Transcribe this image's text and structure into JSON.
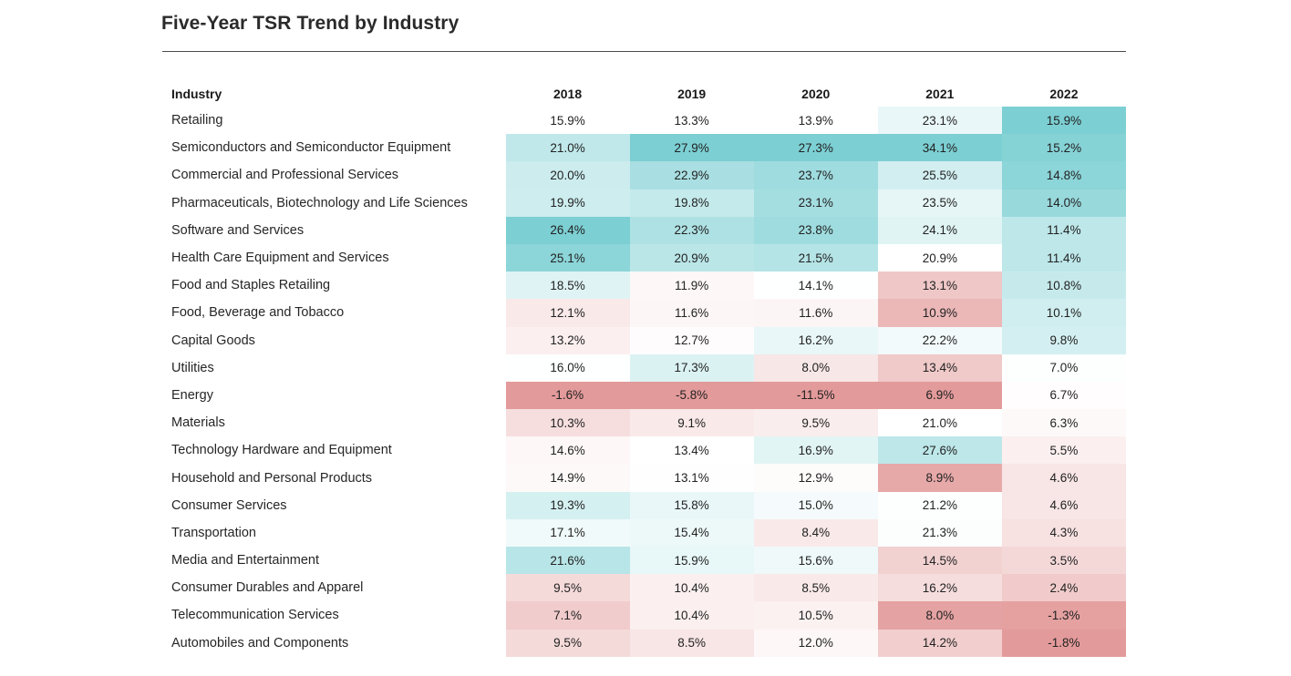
{
  "title": "Five-Year TSR Trend by Industry",
  "chart_data": {
    "type": "heatmap",
    "title": "Five-Year TSR Trend by Industry",
    "row_header": "Industry",
    "columns": [
      "2018",
      "2019",
      "2020",
      "2021",
      "2022"
    ],
    "colors": {
      "high": "#7ccfd3",
      "mid": "#ffffff",
      "low": "#e39a9a"
    },
    "rows": [
      {
        "industry": "Retailing",
        "values": [
          15.9,
          13.3,
          13.9,
          23.1,
          15.9
        ],
        "labels": [
          "15.9%",
          "13.3%",
          "13.9%",
          "23.1%",
          "15.9%"
        ]
      },
      {
        "industry": "Semiconductors and Semiconductor Equipment",
        "values": [
          21.0,
          27.9,
          27.3,
          34.1,
          15.2
        ],
        "labels": [
          "21.0%",
          "27.9%",
          "27.3%",
          "34.1%",
          "15.2%"
        ]
      },
      {
        "industry": "Commercial and Professional Services",
        "values": [
          20.0,
          22.9,
          23.7,
          25.5,
          14.8
        ],
        "labels": [
          "20.0%",
          "22.9%",
          "23.7%",
          "25.5%",
          "14.8%"
        ]
      },
      {
        "industry": "Pharmaceuticals, Biotechnology and Life Sciences",
        "values": [
          19.9,
          19.8,
          23.1,
          23.5,
          14.0
        ],
        "labels": [
          "19.9%",
          "19.8%",
          "23.1%",
          "23.5%",
          "14.0%"
        ]
      },
      {
        "industry": "Software and Services",
        "values": [
          26.4,
          22.3,
          23.8,
          24.1,
          11.4
        ],
        "labels": [
          "26.4%",
          "22.3%",
          "23.8%",
          "24.1%",
          "11.4%"
        ]
      },
      {
        "industry": "Health Care Equipment and Services",
        "values": [
          25.1,
          20.9,
          21.5,
          20.9,
          11.4
        ],
        "labels": [
          "25.1%",
          "20.9%",
          "21.5%",
          "20.9%",
          "11.4%"
        ]
      },
      {
        "industry": "Food and Staples Retailing",
        "values": [
          18.5,
          11.9,
          14.1,
          13.1,
          10.8
        ],
        "labels": [
          "18.5%",
          "11.9%",
          "14.1%",
          "13.1%",
          "10.8%"
        ]
      },
      {
        "industry": "Food, Beverage and Tobacco",
        "values": [
          12.1,
          11.6,
          11.6,
          10.9,
          10.1
        ],
        "labels": [
          "12.1%",
          "11.6%",
          "11.6%",
          "10.9%",
          "10.1%"
        ]
      },
      {
        "industry": "Capital Goods",
        "values": [
          13.2,
          12.7,
          16.2,
          22.2,
          9.8
        ],
        "labels": [
          "13.2%",
          "12.7%",
          "16.2%",
          "22.2%",
          "9.8%"
        ]
      },
      {
        "industry": "Utilities",
        "values": [
          16.0,
          17.3,
          8.0,
          13.4,
          7.0
        ],
        "labels": [
          "16.0%",
          "17.3%",
          "8.0%",
          "13.4%",
          "7.0%"
        ]
      },
      {
        "industry": "Energy",
        "values": [
          -1.6,
          -5.8,
          -11.5,
          6.9,
          6.7
        ],
        "labels": [
          "-1.6%",
          "-5.8%",
          "-11.5%",
          "6.9%",
          "6.7%"
        ]
      },
      {
        "industry": "Materials",
        "values": [
          10.3,
          9.1,
          9.5,
          21.0,
          6.3
        ],
        "labels": [
          "10.3%",
          "9.1%",
          "9.5%",
          "21.0%",
          "6.3%"
        ]
      },
      {
        "industry": "Technology Hardware and Equipment",
        "values": [
          14.6,
          13.4,
          16.9,
          27.6,
          5.5
        ],
        "labels": [
          "14.6%",
          "13.4%",
          "16.9%",
          "27.6%",
          "5.5%"
        ]
      },
      {
        "industry": "Household and Personal Products",
        "values": [
          14.9,
          13.1,
          12.9,
          8.9,
          4.6
        ],
        "labels": [
          "14.9%",
          "13.1%",
          "12.9%",
          "8.9%",
          "4.6%"
        ]
      },
      {
        "industry": "Consumer Services",
        "values": [
          19.3,
          15.8,
          15.0,
          21.2,
          4.6
        ],
        "labels": [
          "19.3%",
          "15.8%",
          "15.0%",
          "21.2%",
          "4.6%"
        ]
      },
      {
        "industry": "Transportation",
        "values": [
          17.1,
          15.4,
          8.4,
          21.3,
          4.3
        ],
        "labels": [
          "17.1%",
          "15.4%",
          "8.4%",
          "21.3%",
          "4.3%"
        ]
      },
      {
        "industry": "Media and Entertainment",
        "values": [
          21.6,
          15.9,
          15.6,
          14.5,
          3.5
        ],
        "labels": [
          "21.6%",
          "15.9%",
          "15.6%",
          "14.5%",
          "3.5%"
        ]
      },
      {
        "industry": "Consumer Durables and Apparel",
        "values": [
          9.5,
          10.4,
          8.5,
          16.2,
          2.4
        ],
        "labels": [
          "9.5%",
          "10.4%",
          "8.5%",
          "16.2%",
          "2.4%"
        ]
      },
      {
        "industry": "Telecommunication Services",
        "values": [
          7.1,
          10.4,
          10.5,
          8.0,
          -1.3
        ],
        "labels": [
          "7.1%",
          "10.4%",
          "10.5%",
          "8.0%",
          "-1.3%"
        ]
      },
      {
        "industry": "Automobiles and Components",
        "values": [
          9.5,
          8.5,
          12.0,
          14.2,
          -1.8
        ],
        "labels": [
          "9.5%",
          "8.5%",
          "12.0%",
          "14.2%",
          "-1.8%"
        ]
      }
    ]
  }
}
